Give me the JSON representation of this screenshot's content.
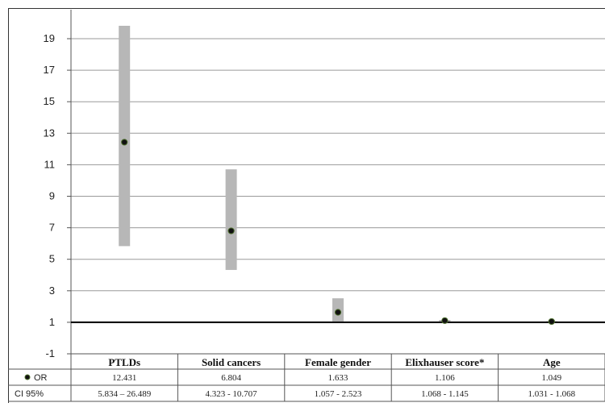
{
  "chart_data": {
    "type": "scatter",
    "title": "",
    "xlabel": "",
    "ylabel": "",
    "ylim": [
      -1,
      20
    ],
    "yticks": [
      -1,
      1,
      3,
      5,
      7,
      9,
      11,
      13,
      15,
      17,
      19
    ],
    "reference_line": 1,
    "grid": true,
    "categories": [
      "PTLDs",
      "Solid cancers",
      "Female gender",
      "Elixhauser score*",
      "Age"
    ],
    "series": [
      {
        "name": "OR",
        "values": [
          12.431,
          6.804,
          1.633,
          1.106,
          1.049
        ],
        "labels": [
          "12.431",
          "6.804",
          "1.633",
          "1.106",
          "1.049"
        ]
      },
      {
        "name": "CI 95%",
        "low": [
          5.834,
          4.323,
          1.057,
          1.068,
          1.031
        ],
        "high": [
          26.489,
          10.707,
          2.523,
          1.145,
          1.068
        ],
        "labels": [
          "5.834 – 26.489",
          "4.323 - 10.707",
          "1.057 - 2.523",
          "1.068 - 1.145",
          "1.031 - 1.068"
        ]
      }
    ],
    "colors": {
      "ci_bar": "#b7b7b7",
      "point": "#111111",
      "point_ring": "#4a6b2a",
      "grid": "#9a9a9a"
    }
  }
}
